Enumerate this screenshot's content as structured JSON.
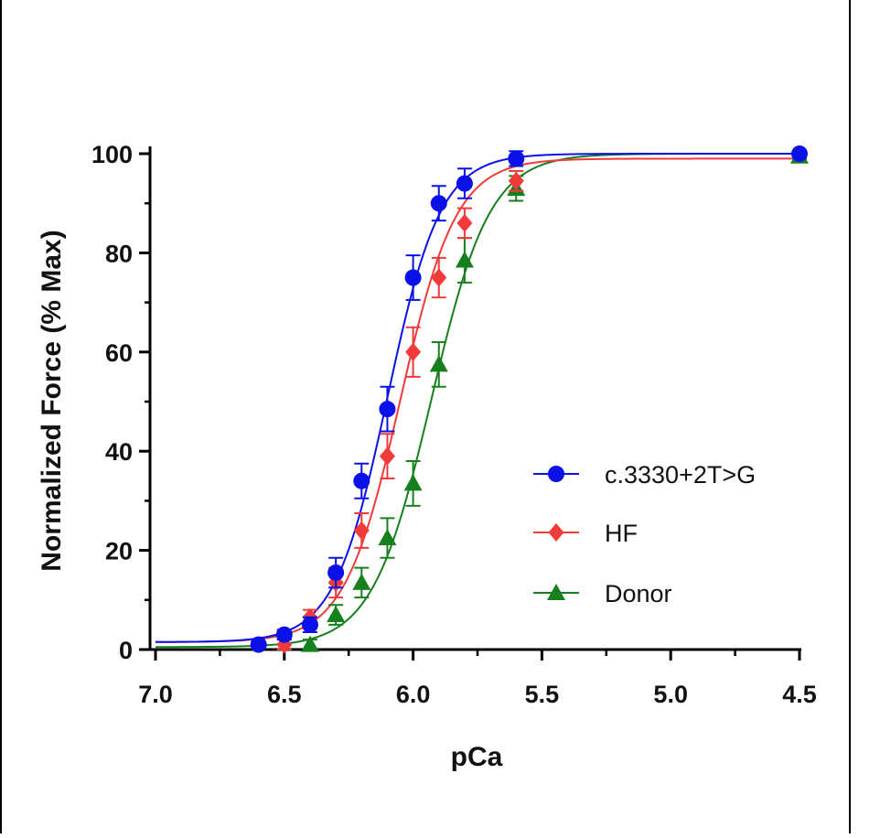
{
  "chart_data": {
    "type": "scatter",
    "xlabel": "pCa",
    "ylabel": "Normalized Force  (% Max)",
    "x_reversed": true,
    "xlim": [
      7.0,
      4.5
    ],
    "ylim": [
      0,
      100
    ],
    "x_ticks": [
      7.0,
      6.5,
      6.0,
      5.5,
      5.0,
      4.5
    ],
    "x_tick_labels": [
      "7.0",
      "6.5",
      "6.0",
      "5.5",
      "5.0",
      "4.5"
    ],
    "y_ticks": [
      0,
      20,
      40,
      60,
      80,
      100
    ],
    "y_tick_labels": [
      "0",
      "20",
      "40",
      "60",
      "80",
      "100"
    ],
    "legend_position": "center-right",
    "series": [
      {
        "name": "c.3330+2T>G",
        "color": "#0a10e8",
        "marker": "circle",
        "fit": {
          "bottom": 1.5,
          "top": 100,
          "pca50": 6.1,
          "hill": 4.2
        },
        "points": [
          {
            "x": 6.6,
            "y": 1.0,
            "err": 0.5
          },
          {
            "x": 6.5,
            "y": 3.0,
            "err": 1.0
          },
          {
            "x": 6.4,
            "y": 5.0,
            "err": 1.5
          },
          {
            "x": 6.3,
            "y": 15.5,
            "err": 3.0
          },
          {
            "x": 6.2,
            "y": 34.0,
            "err": 3.5
          },
          {
            "x": 6.1,
            "y": 48.5,
            "err": 4.5
          },
          {
            "x": 6.0,
            "y": 75.0,
            "err": 4.5
          },
          {
            "x": 5.9,
            "y": 90.0,
            "err": 3.5
          },
          {
            "x": 5.8,
            "y": 94.0,
            "err": 3.0
          },
          {
            "x": 5.6,
            "y": 99.0,
            "err": 1.5
          },
          {
            "x": 4.5,
            "y": 100.0,
            "err": 0.5
          }
        ]
      },
      {
        "name": "HF",
        "color": "#f23a3a",
        "marker": "diamond",
        "fit": {
          "bottom": 1.5,
          "top": 99,
          "pca50": 6.05,
          "hill": 4.0
        },
        "points": [
          {
            "x": 6.5,
            "y": 1.0,
            "err": 1.0
          },
          {
            "x": 6.4,
            "y": 6.5,
            "err": 1.5
          },
          {
            "x": 6.3,
            "y": 13.5,
            "err": 3.0
          },
          {
            "x": 6.2,
            "y": 24.0,
            "err": 3.5
          },
          {
            "x": 6.1,
            "y": 39.0,
            "err": 4.5
          },
          {
            "x": 6.0,
            "y": 60.0,
            "err": 5.0
          },
          {
            "x": 5.9,
            "y": 75.0,
            "err": 4.0
          },
          {
            "x": 5.8,
            "y": 86.0,
            "err": 3.0
          },
          {
            "x": 5.6,
            "y": 94.5,
            "err": 2.0
          }
        ]
      },
      {
        "name": "Donor",
        "color": "#16801e",
        "marker": "triangle",
        "fit": {
          "bottom": 0.5,
          "top": 100,
          "pca50": 5.93,
          "hill": 3.8
        },
        "points": [
          {
            "x": 6.4,
            "y": 1.0,
            "err": 1.0
          },
          {
            "x": 6.3,
            "y": 7.0,
            "err": 2.0
          },
          {
            "x": 6.2,
            "y": 13.5,
            "err": 3.0
          },
          {
            "x": 6.1,
            "y": 22.5,
            "err": 4.0
          },
          {
            "x": 6.0,
            "y": 33.5,
            "err": 4.5
          },
          {
            "x": 5.9,
            "y": 57.5,
            "err": 4.5
          },
          {
            "x": 5.8,
            "y": 78.5,
            "err": 4.5
          },
          {
            "x": 5.6,
            "y": 93.0,
            "err": 2.5
          },
          {
            "x": 4.5,
            "y": 99.5,
            "err": 0.5
          }
        ]
      }
    ]
  }
}
